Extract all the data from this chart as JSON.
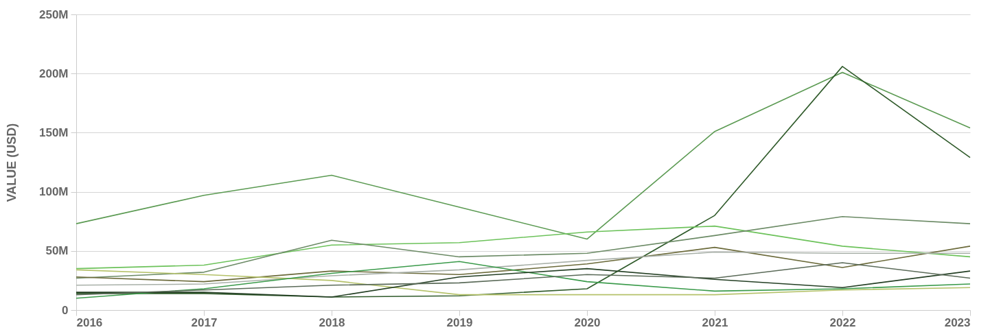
{
  "chart_data": {
    "type": "line",
    "ylabel": "VALUE (USD)",
    "x": [
      2016,
      2017,
      2018,
      2019,
      2020,
      2021,
      2022,
      2023
    ],
    "xlim": [
      2016,
      2023
    ],
    "xticks": [
      2016,
      2017,
      2018,
      2019,
      2020,
      2021,
      2022,
      2023
    ],
    "ylim": [
      0,
      250
    ],
    "yticks": [
      {
        "value": 0,
        "label": "0"
      },
      {
        "value": 50,
        "label": "50M"
      },
      {
        "value": 100,
        "label": "100M"
      },
      {
        "value": 150,
        "label": "150M"
      },
      {
        "value": 200,
        "label": "200M"
      },
      {
        "value": 250,
        "label": "250M"
      }
    ],
    "grid": "y",
    "marker": "none",
    "line_style": "solid",
    "series": [
      {
        "color": "#5b9a52",
        "values": [
          73,
          97,
          114,
          87,
          60,
          151,
          201,
          154
        ]
      },
      {
        "color": "#2f5a2a",
        "values": [
          14,
          14,
          11,
          12,
          18,
          80,
          206,
          129
        ]
      },
      {
        "color": "#6cc25a",
        "values": [
          35,
          38,
          55,
          57,
          66,
          71,
          54,
          45
        ]
      },
      {
        "color": "#6b8a65",
        "values": [
          27,
          32,
          59,
          45,
          48,
          63,
          79,
          73
        ]
      },
      {
        "color": "#6b6a3a",
        "values": [
          28,
          24,
          33,
          30,
          39,
          53,
          36,
          54
        ]
      },
      {
        "color": "#a8b0a8",
        "values": [
          21,
          22,
          29,
          34,
          42,
          49,
          48,
          48
        ]
      },
      {
        "color": "#b5c26a",
        "values": [
          34,
          30,
          25,
          13,
          13,
          13,
          17,
          19
        ]
      },
      {
        "color": "#3a9a4a",
        "values": [
          10,
          18,
          31,
          41,
          24,
          16,
          18,
          22
        ]
      },
      {
        "color": "#243f24",
        "values": [
          15,
          15,
          11,
          28,
          35,
          26,
          19,
          33
        ]
      },
      {
        "color": "#5a6a58",
        "values": [
          13,
          17,
          21,
          23,
          30,
          27,
          40,
          27
        ]
      }
    ]
  }
}
